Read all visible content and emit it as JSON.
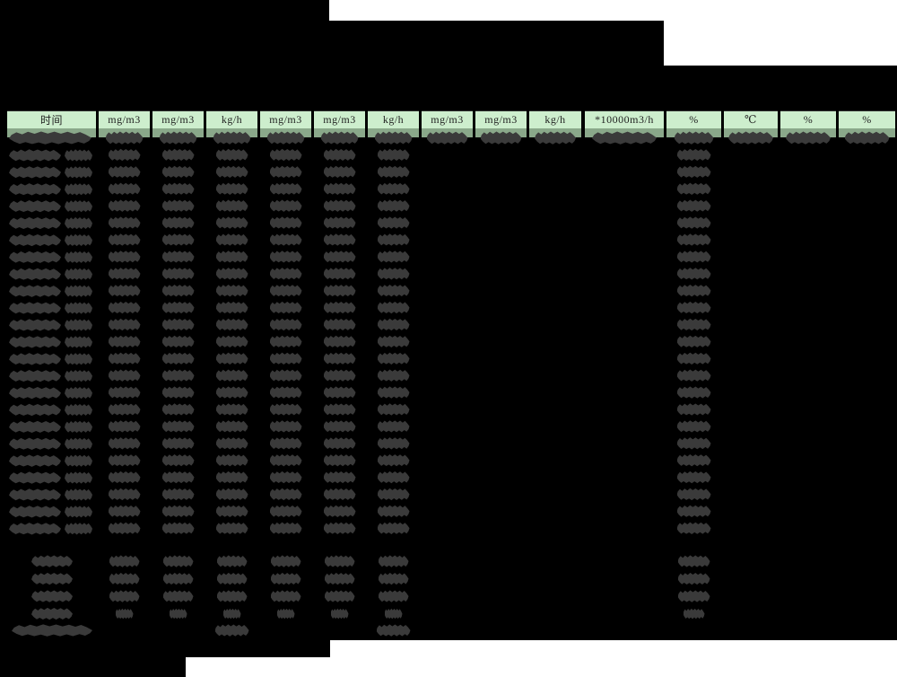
{
  "table": {
    "columns": [
      {
        "label": "时间"
      },
      {
        "label": "mg/m3"
      },
      {
        "label": "mg/m3"
      },
      {
        "label": "kg/h"
      },
      {
        "label": "mg/m3"
      },
      {
        "label": "mg/m3"
      },
      {
        "label": "kg/h"
      },
      {
        "label": "mg/m3"
      },
      {
        "label": "mg/m3"
      },
      {
        "label": "kg/h"
      },
      {
        "label": "*10000m3/h"
      },
      {
        "label": "%"
      },
      {
        "label": "℃"
      },
      {
        "label": "%"
      },
      {
        "label": "%"
      }
    ],
    "row_counts": {
      "data_rows": 24,
      "summary_rows": 4,
      "footer_rows": 1
    }
  },
  "colors": {
    "background": "#000000",
    "paper": "#ffffff",
    "header_bg": "#cdeecd",
    "subheader_bg": "#8aa88a",
    "redaction_blob": "#3a3a3a"
  }
}
